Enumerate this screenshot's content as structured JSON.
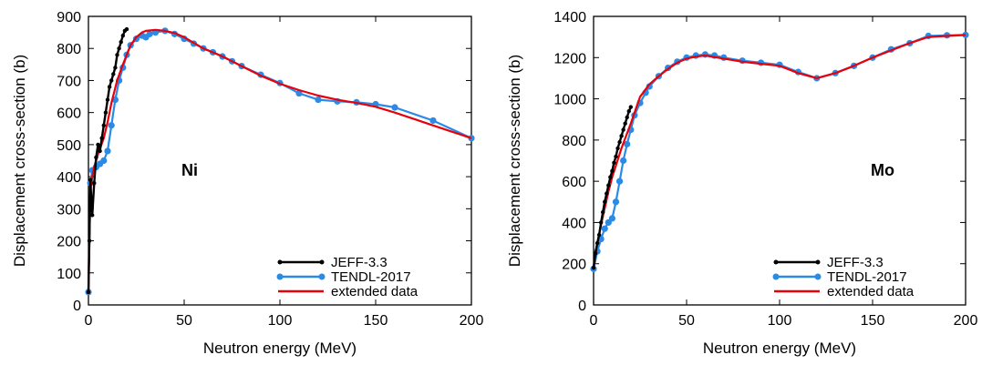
{
  "chart_data": [
    {
      "type": "line",
      "panel_label": "Ni",
      "xlabel": "Neutron energy (MeV)",
      "ylabel": "Displacement cross-section (b)",
      "xlim": [
        0,
        200
      ],
      "ylim": [
        0,
        900
      ],
      "xticks": [
        "0",
        "50",
        "100",
        "150",
        "200"
      ],
      "yticks": [
        "0",
        "100",
        "200",
        "300",
        "400",
        "500",
        "600",
        "700",
        "800",
        "900"
      ],
      "legend_position": "bottom-right",
      "series": [
        {
          "name": "JEFF-3.3",
          "color": "#000000",
          "x": [
            0,
            0.5,
            1,
            1.5,
            2,
            3,
            4,
            5,
            6,
            7,
            8,
            9,
            10,
            11,
            12,
            13,
            14,
            15,
            16,
            17,
            18,
            19,
            20
          ],
          "y": [
            40,
            200,
            390,
            330,
            280,
            380,
            460,
            500,
            480,
            520,
            560,
            600,
            640,
            680,
            700,
            720,
            740,
            780,
            800,
            820,
            840,
            855,
            860
          ]
        },
        {
          "name": "TENDL-2017",
          "color": "#2a8ae6",
          "x": [
            0,
            1,
            2,
            4,
            6,
            8,
            10,
            12,
            14,
            16,
            18,
            20,
            22,
            25,
            28,
            30,
            32,
            35,
            40,
            45,
            50,
            55,
            60,
            65,
            70,
            75,
            80,
            90,
            100,
            110,
            120,
            130,
            140,
            150,
            160,
            180,
            200
          ],
          "y": [
            40,
            380,
            420,
            430,
            440,
            450,
            480,
            560,
            640,
            700,
            740,
            780,
            810,
            830,
            840,
            835,
            845,
            850,
            855,
            845,
            830,
            815,
            800,
            788,
            775,
            760,
            745,
            718,
            692,
            660,
            640,
            635,
            632,
            626,
            616,
            575,
            520
          ]
        },
        {
          "name": "extended data",
          "color": "#e8000b",
          "x": [
            0,
            1,
            2,
            3,
            5,
            8,
            10,
            12,
            15,
            18,
            20,
            22,
            25,
            28,
            30,
            35,
            40,
            45,
            50,
            60,
            70,
            80,
            90,
            100,
            110,
            120,
            130,
            140,
            150,
            160,
            170,
            180,
            190,
            200
          ],
          "y": [
            40,
            360,
            400,
            430,
            470,
            520,
            570,
            630,
            700,
            750,
            780,
            810,
            835,
            850,
            855,
            858,
            855,
            848,
            835,
            800,
            775,
            745,
            715,
            690,
            670,
            653,
            640,
            630,
            618,
            600,
            580,
            560,
            540,
            520
          ]
        }
      ]
    },
    {
      "type": "line",
      "panel_label": "Mo",
      "xlabel": "Neutron energy (MeV)",
      "ylabel": "Displacement cross-section (b)",
      "xlim": [
        0,
        200
      ],
      "ylim": [
        0,
        1400
      ],
      "xticks": [
        "0",
        "50",
        "100",
        "150",
        "200"
      ],
      "yticks": [
        "0",
        "200",
        "400",
        "600",
        "800",
        "1000",
        "1200",
        "1400"
      ],
      "legend_position": "bottom-right",
      "series": [
        {
          "name": "JEFF-3.3",
          "color": "#000000",
          "x": [
            0,
            1,
            2,
            3,
            4,
            5,
            6,
            7,
            8,
            9,
            10,
            11,
            12,
            13,
            14,
            15,
            16,
            17,
            18,
            19,
            20
          ],
          "y": [
            180,
            250,
            300,
            340,
            400,
            450,
            500,
            540,
            580,
            620,
            650,
            690,
            720,
            760,
            790,
            820,
            850,
            880,
            910,
            940,
            960
          ]
        },
        {
          "name": "TENDL-2017",
          "color": "#2a8ae6",
          "x": [
            0,
            2,
            4,
            6,
            8,
            10,
            12,
            14,
            16,
            18,
            20,
            22,
            25,
            28,
            30,
            35,
            40,
            45,
            50,
            55,
            60,
            65,
            70,
            80,
            90,
            100,
            110,
            120,
            130,
            140,
            150,
            160,
            170,
            180,
            190,
            200
          ],
          "y": [
            175,
            260,
            320,
            370,
            400,
            420,
            500,
            600,
            700,
            780,
            850,
            920,
            980,
            1030,
            1060,
            1110,
            1150,
            1180,
            1200,
            1210,
            1215,
            1210,
            1200,
            1185,
            1175,
            1165,
            1130,
            1100,
            1125,
            1160,
            1200,
            1240,
            1270,
            1305,
            1308,
            1310
          ]
        },
        {
          "name": "extended data",
          "color": "#e8000b",
          "x": [
            0,
            2,
            5,
            8,
            10,
            15,
            20,
            25,
            30,
            35,
            40,
            45,
            50,
            55,
            60,
            70,
            80,
            90,
            100,
            110,
            120,
            130,
            140,
            150,
            160,
            170,
            180,
            190,
            200
          ],
          "y": [
            180,
            300,
            430,
            550,
            620,
            760,
            880,
            1010,
            1070,
            1110,
            1145,
            1175,
            1195,
            1205,
            1210,
            1195,
            1180,
            1170,
            1160,
            1125,
            1100,
            1125,
            1160,
            1200,
            1235,
            1270,
            1300,
            1305,
            1310
          ]
        }
      ]
    }
  ]
}
